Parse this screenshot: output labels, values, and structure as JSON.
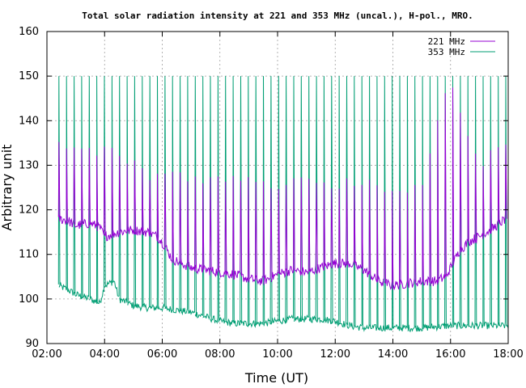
{
  "chart_data": {
    "type": "line",
    "title": "Total solar radiation intensity at 221 and 353 MHz (uncal.), H-pol., MRO.",
    "xlabel": "Time (UT)",
    "ylabel": "Arbitrary unit",
    "xlim": [
      "02:00",
      "18:00"
    ],
    "ylim": [
      90,
      160
    ],
    "x_ticks": [
      "02:00",
      "04:00",
      "06:00",
      "08:00",
      "10:00",
      "12:00",
      "14:00",
      "16:00",
      "18:00"
    ],
    "y_ticks": [
      "90",
      "100",
      "110",
      "120",
      "130",
      "140",
      "150",
      "160"
    ],
    "grid": true,
    "legend": "top-right",
    "series": [
      {
        "name": "221 MHz",
        "color": "#9400d3",
        "baseline": [
          [
            "02:24",
            118
          ],
          [
            "02:45",
            117.5
          ],
          [
            "03:00",
            116.5
          ],
          [
            "03:30",
            117
          ],
          [
            "03:50",
            116
          ],
          [
            "04:00",
            114
          ],
          [
            "04:30",
            115
          ],
          [
            "05:00",
            115.5
          ],
          [
            "05:30",
            115
          ],
          [
            "05:50",
            114
          ],
          [
            "06:05",
            112
          ],
          [
            "06:20",
            109
          ],
          [
            "06:40",
            108
          ],
          [
            "07:00",
            107
          ],
          [
            "07:30",
            106.5
          ],
          [
            "08:00",
            106
          ],
          [
            "08:30",
            105.5
          ],
          [
            "09:00",
            104.5
          ],
          [
            "09:30",
            104
          ],
          [
            "10:00",
            105.5
          ],
          [
            "10:30",
            106.5
          ],
          [
            "11:00",
            106
          ],
          [
            "11:30",
            107
          ],
          [
            "12:00",
            108
          ],
          [
            "12:30",
            108
          ],
          [
            "13:00",
            106.5
          ],
          [
            "13:30",
            104
          ],
          [
            "14:00",
            103
          ],
          [
            "14:30",
            103.5
          ],
          [
            "15:00",
            104
          ],
          [
            "15:30",
            104
          ],
          [
            "15:50",
            105
          ],
          [
            "16:00",
            107
          ],
          [
            "16:20",
            111
          ],
          [
            "16:40",
            113
          ],
          [
            "17:00",
            114
          ],
          [
            "17:30",
            116
          ],
          [
            "17:55",
            118
          ]
        ],
        "spike_peaks": [
          [
            "02:40",
            134
          ],
          [
            "03:00",
            133
          ],
          [
            "03:30",
            133
          ],
          [
            "03:50",
            133
          ],
          [
            "04:20",
            133
          ],
          [
            "05:00",
            130
          ],
          [
            "05:30",
            128
          ],
          [
            "06:00",
            128
          ],
          [
            "07:00",
            127
          ],
          [
            "08:00",
            127
          ],
          [
            "09:00",
            126
          ],
          [
            "10:00",
            126
          ],
          [
            "11:00",
            126
          ],
          [
            "12:00",
            126
          ],
          [
            "13:00",
            126
          ],
          [
            "14:00",
            125
          ],
          [
            "15:00",
            125
          ],
          [
            "16:00",
            150
          ],
          [
            "17:00",
            130
          ],
          [
            "17:50",
            135
          ]
        ]
      },
      {
        "name": "353 MHz",
        "color": "#009e73",
        "baseline": [
          [
            "02:24",
            103
          ],
          [
            "02:45",
            102
          ],
          [
            "03:00",
            101
          ],
          [
            "03:30",
            100
          ],
          [
            "03:50",
            99
          ],
          [
            "04:00",
            103
          ],
          [
            "04:20",
            104
          ],
          [
            "04:30",
            100
          ],
          [
            "05:00",
            98.5
          ],
          [
            "05:30",
            98
          ],
          [
            "06:00",
            98
          ],
          [
            "06:30",
            97.5
          ],
          [
            "07:00",
            97
          ],
          [
            "07:30",
            96
          ],
          [
            "08:00",
            95
          ],
          [
            "08:30",
            94.5
          ],
          [
            "09:00",
            94.5
          ],
          [
            "09:30",
            94.5
          ],
          [
            "10:00",
            95
          ],
          [
            "10:30",
            95.5
          ],
          [
            "11:00",
            95.5
          ],
          [
            "11:30",
            95.5
          ],
          [
            "12:00",
            95
          ],
          [
            "12:30",
            94
          ],
          [
            "13:00",
            93.5
          ],
          [
            "13:30",
            93.5
          ],
          [
            "14:00",
            93.5
          ],
          [
            "15:00",
            93.5
          ],
          [
            "16:00",
            94
          ],
          [
            "17:00",
            94
          ],
          [
            "18:00",
            94
          ]
        ],
        "spike_peak": 150,
        "spike_start": "02:25",
        "spike_end": "17:55",
        "spike_count": 60
      }
    ]
  }
}
